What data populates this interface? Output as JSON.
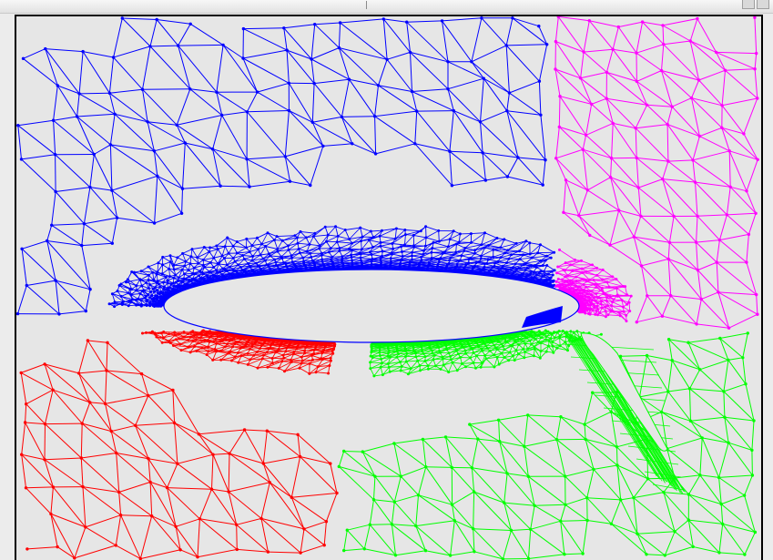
{
  "window": {
    "controls": [
      "minimize-button",
      "close-button"
    ]
  },
  "canvas": {
    "background": "#e6e6e6",
    "border_color": "#000000"
  },
  "mesh": {
    "regions": [
      {
        "name": "upper-left",
        "color": "#0000ff"
      },
      {
        "name": "upper-right",
        "color": "#ff00ff"
      },
      {
        "name": "lower-left",
        "color": "#ff0000"
      },
      {
        "name": "lower-right",
        "color": "#00ff00"
      }
    ],
    "airfoil": "main-element",
    "flap": "flap-element"
  }
}
